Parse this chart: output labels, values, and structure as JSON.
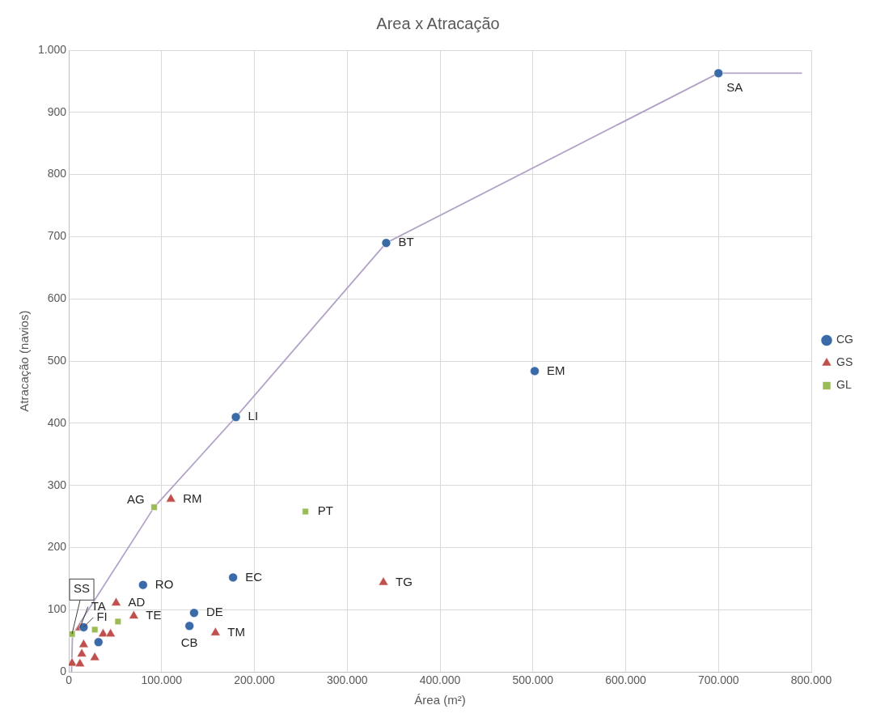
{
  "chart_data": {
    "type": "scatter",
    "title": "Area x Atracação",
    "xlabel": "Área (m²)",
    "ylabel": "Atracação (navios)",
    "xlim": [
      0,
      800000
    ],
    "xticks": [
      0,
      {
        "value": 100000,
        "label": "100.000"
      },
      {
        "value": 200000,
        "label": "200.000"
      },
      {
        "value": 300000,
        "label": "300.000"
      },
      {
        "value": 400000,
        "label": "400.000"
      },
      {
        "value": 500000,
        "label": "500.000"
      },
      {
        "value": 600000,
        "label": "600.000"
      },
      {
        "value": 700000,
        "label": "700.000"
      },
      {
        "value": 800000,
        "label": "800.000"
      }
    ],
    "ylim": [
      0,
      1000
    ],
    "yticks": [
      0,
      100,
      200,
      300,
      400,
      500,
      600,
      700,
      800,
      900,
      {
        "value": 1000,
        "label": "1.000"
      }
    ],
    "grid": true,
    "legend": "right",
    "series": [
      {
        "name": "CG",
        "type": "scatter",
        "marker": "circle",
        "color": "#3b6aa8",
        "x": [
          700000,
          342000,
          502000,
          180000,
          177000,
          80000,
          135000,
          130000,
          16000,
          32000
        ],
        "values": [
          963,
          690,
          484,
          410,
          152,
          140,
          95,
          74,
          72,
          48
        ],
        "value_labels": [
          "SA",
          "BT",
          "EM",
          "LI",
          "EC",
          "RO",
          "DE",
          "CB",
          "FI",
          null
        ]
      },
      {
        "name": "GS",
        "type": "scatter",
        "marker": "triangle",
        "color": "#c0504d",
        "x": [
          110000,
          339000,
          158000,
          70000,
          51000,
          12000,
          37000,
          45000,
          16000,
          14000,
          28000,
          3500,
          12000
        ],
        "values": [
          278,
          144,
          63,
          90,
          111,
          71,
          61,
          61,
          44,
          29,
          23,
          14,
          13
        ],
        "value_labels": [
          "RM",
          "TG",
          "TM",
          "TE",
          "AD",
          "TA",
          null,
          null,
          null,
          null,
          null,
          null,
          null
        ]
      },
      {
        "name": "GL",
        "type": "scatter",
        "marker": "square",
        "color": "#9bbb59",
        "x": [
          92000,
          255000,
          53000,
          28000,
          3500
        ],
        "values": [
          265,
          258,
          81,
          68,
          61
        ],
        "value_labels": [
          "AG",
          "PT",
          null,
          null,
          "SS"
        ]
      },
      {
        "type": "line",
        "marker": "none",
        "line_style": "solid",
        "color": "#b3a2c7",
        "x": [
          3000,
          4000,
          92000,
          180000,
          342000,
          700000,
          790000
        ],
        "values": [
          0,
          60,
          265,
          410,
          690,
          963,
          963
        ]
      }
    ]
  }
}
